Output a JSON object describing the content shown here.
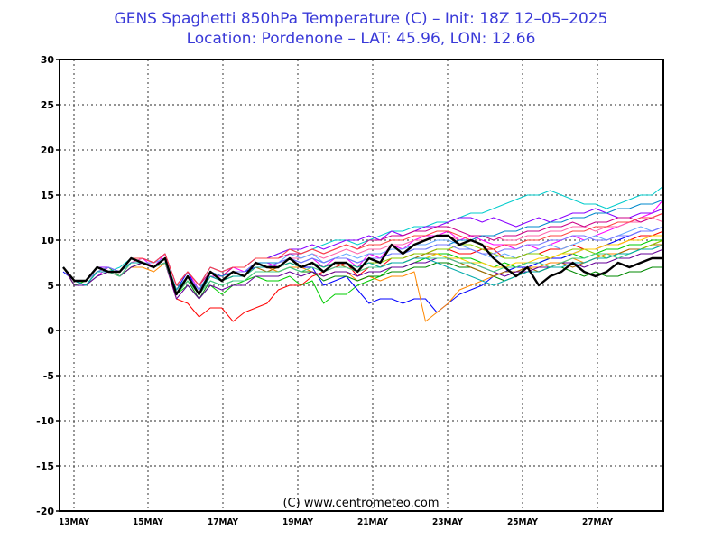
{
  "header": {
    "title_line1": "GENS Spaghetti 850hPa Temperature (C)  –  Init: 18Z 12–05–2025",
    "title_line2": "Location: Pordenone  –  LAT: 45.96, LON: 12.66"
  },
  "credit": "(C) www.centrometeo.com",
  "colors": {
    "title": "#3a3ad8",
    "grid": "#000000",
    "control": "#000000",
    "members": [
      "#ff00ff",
      "#00cc00",
      "#0000ff",
      "#ff0000",
      "#00cccc",
      "#ff8800",
      "#8800ff",
      "#008800",
      "#ff66aa",
      "#66aaff",
      "#aa6600",
      "#88cc00",
      "#cc0088",
      "#0088cc",
      "#ffcc00",
      "#660099",
      "#ff4444",
      "#44cc88",
      "#7777ff",
      "#00aaaa",
      "#cc6600",
      "#99cc33",
      "#ff33cc",
      "#3399ff",
      "#666666",
      "#00ff88",
      "#cc3333",
      "#6699cc",
      "#aa00aa",
      "#33aa33"
    ]
  },
  "chart_data": {
    "type": "line",
    "title": "GENS Spaghetti 850hPa Temperature (C)",
    "ylim": [
      -20,
      30
    ],
    "yticks": [
      30,
      25,
      20,
      15,
      10,
      5,
      0,
      -5,
      -10,
      -15,
      -20
    ],
    "xticks": [
      "13MAY",
      "15MAY",
      "17MAY",
      "19MAY",
      "21MAY",
      "23MAY",
      "25MAY",
      "27MAY"
    ],
    "grid": true,
    "control_run": [
      7,
      5.5,
      5.5,
      7,
      6.5,
      6.5,
      8,
      7.5,
      7,
      8,
      4,
      6,
      4,
      6.5,
      5.5,
      6.5,
      6,
      7.5,
      7,
      7,
      8,
      7,
      7.5,
      6.5,
      7.5,
      7.5,
      6.5,
      8,
      7.5,
      9.5,
      8.5,
      9.5,
      10,
      10.5,
      10.5,
      9.5,
      10,
      9.5,
      8,
      7,
      6,
      7,
      5,
      6,
      6.5,
      7.5,
      6.5,
      6,
      6.5,
      7.5,
      7,
      7.5,
      8,
      8
    ],
    "members": [
      [
        7,
        5.5,
        5,
        6,
        7,
        6,
        7.5,
        8,
        7,
        8.5,
        5,
        6.5,
        4.5,
        6,
        6,
        7,
        6.5,
        7.5,
        7.5,
        7,
        8,
        7.5,
        8,
        7,
        8,
        8,
        7,
        8.5,
        8,
        9.5,
        9,
        10,
        10.5,
        10.5,
        11,
        10,
        10.5,
        10,
        9.5,
        9.5,
        9,
        9.5,
        9,
        9.5,
        10,
        10.5,
        10,
        10.5,
        11,
        11.5,
        12,
        12.5,
        13,
        14.5
      ],
      [
        7,
        5,
        5.5,
        6.5,
        7,
        6,
        7,
        7.5,
        7,
        8,
        4,
        5,
        3.5,
        5,
        4,
        5,
        5.5,
        6,
        5.5,
        5.5,
        6,
        5,
        5.5,
        3,
        4,
        4,
        5,
        5.5,
        6,
        7,
        7,
        7.5,
        8,
        8.5,
        8.5,
        8,
        8,
        7.5,
        7,
        7.5,
        7,
        7.5,
        7.5,
        8,
        8,
        8.5,
        8,
        8.5,
        9,
        9,
        9.5,
        9.5,
        10,
        10
      ],
      [
        6.5,
        5.5,
        5,
        6.5,
        6.5,
        6.5,
        8,
        7.5,
        7,
        7.5,
        4.5,
        6.5,
        4,
        6,
        5.5,
        6.5,
        6.5,
        7,
        7,
        7,
        8,
        7,
        7,
        5,
        5.5,
        6,
        4.5,
        3,
        3.5,
        3.5,
        3,
        3.5,
        3.5,
        2,
        3,
        4,
        4.5,
        5,
        6,
        6.5,
        7,
        7,
        7.5,
        8,
        8,
        8.5,
        9,
        9,
        9.5,
        10,
        10.5,
        11,
        11,
        11.5
      ],
      [
        7,
        5,
        5,
        6.5,
        6.5,
        6.5,
        7.5,
        7.5,
        7,
        7.5,
        3.5,
        3,
        1.5,
        2.5,
        2.5,
        1,
        2,
        2.5,
        3,
        4.5,
        5,
        5,
        6,
        6.5,
        7,
        7.5,
        6,
        7,
        7,
        8,
        8,
        8.5,
        8.5,
        9,
        9,
        8.5,
        8.5,
        9,
        9,
        8,
        8,
        8.5,
        8.5,
        9,
        9,
        9.5,
        9,
        9,
        9.5,
        9.5,
        10,
        10.5,
        10.5,
        11
      ],
      [
        7,
        5.5,
        5.5,
        7,
        6.5,
        7,
        8,
        8,
        7.5,
        8.5,
        5,
        6.5,
        5,
        7,
        6.5,
        7,
        7,
        8,
        8,
        8.5,
        9,
        8.5,
        9,
        9.5,
        10,
        10,
        9.5,
        10,
        10.5,
        11,
        11,
        11.5,
        11.5,
        12,
        12,
        12.5,
        13,
        13,
        13.5,
        14,
        14.5,
        15,
        15,
        15.5,
        15,
        14.5,
        14,
        14,
        13.5,
        14,
        14.5,
        15,
        15,
        16
      ],
      [
        7,
        5.5,
        5.5,
        6.5,
        6.5,
        6,
        7,
        7,
        6.5,
        7.5,
        4.5,
        6,
        4,
        6,
        5.5,
        6,
        6,
        7,
        7,
        6.5,
        7,
        7,
        6.5,
        6,
        6.5,
        6.5,
        5.5,
        6,
        5.5,
        6,
        6,
        6.5,
        1,
        2,
        3,
        4.5,
        5,
        5.5,
        6,
        6.5,
        6.5,
        7,
        7,
        7.5,
        7.5,
        8,
        7.5,
        8,
        8.5,
        8.5,
        9,
        9,
        9.5,
        10
      ],
      [
        7,
        5.5,
        5.5,
        7,
        7,
        6.5,
        7.5,
        8,
        7.5,
        8.5,
        5,
        6.5,
        5,
        7,
        6.5,
        7,
        7,
        8,
        8,
        8.5,
        9,
        9,
        9.5,
        9,
        9.5,
        10,
        10,
        10.5,
        10,
        11,
        10.5,
        11,
        11.5,
        11.5,
        12,
        12.5,
        12.5,
        12,
        12.5,
        12,
        11.5,
        12,
        12.5,
        12,
        12.5,
        13,
        13,
        13.5,
        13,
        12.5,
        12.5,
        13,
        13,
        13.5
      ],
      [
        7,
        5,
        5,
        6,
        6.5,
        6,
        7,
        7.5,
        7,
        7.5,
        4,
        5.5,
        3.5,
        5.5,
        5,
        5.5,
        5.5,
        6.5,
        6.5,
        6.5,
        7,
        6.5,
        6.5,
        5.5,
        6,
        6,
        5.5,
        6,
        6,
        6.5,
        6.5,
        7,
        7,
        7.5,
        7.5,
        7,
        7,
        6.5,
        6,
        5.5,
        6,
        6.5,
        6.5,
        7,
        7,
        6.5,
        6,
        6.5,
        6,
        6,
        6.5,
        6.5,
        7,
        7
      ],
      [
        7,
        5.5,
        5.5,
        7,
        6.5,
        6.5,
        7.5,
        8,
        7.5,
        8,
        4.5,
        6,
        4.5,
        6.5,
        6,
        6.5,
        6.5,
        7.5,
        7,
        7.5,
        8,
        8,
        8.5,
        8,
        8.5,
        9,
        8.5,
        9,
        9,
        9.5,
        9.5,
        10,
        10,
        10.5,
        10.5,
        10,
        10,
        10.5,
        10.5,
        10,
        10,
        10.5,
        10.5,
        11,
        11,
        11.5,
        11.5,
        11,
        11.5,
        11.5,
        12,
        12,
        12.5,
        12
      ],
      [
        7,
        5.5,
        5,
        6.5,
        6.5,
        6.5,
        7.5,
        7.5,
        7.5,
        8,
        4.5,
        6,
        4.5,
        6,
        5.5,
        6.5,
        6.5,
        7.5,
        7,
        7.5,
        8.5,
        8,
        8.5,
        7.5,
        8,
        8.5,
        8,
        8.5,
        8.5,
        9,
        9,
        9.5,
        9.5,
        10,
        10,
        9.5,
        9,
        8.5,
        8,
        8.5,
        8,
        8.5,
        9,
        9.5,
        9,
        9.5,
        10,
        10.5,
        10,
        10.5,
        11,
        11.5,
        11,
        11.5
      ],
      [
        7,
        5.5,
        5.5,
        7,
        6.5,
        6.5,
        8,
        7.5,
        7,
        8,
        4.5,
        6,
        4,
        6,
        5.5,
        6,
        6,
        7,
        6.5,
        7,
        7.5,
        7,
        7.5,
        7,
        7.5,
        7,
        6.5,
        7,
        7,
        7.5,
        7.5,
        8,
        8.5,
        8.5,
        8,
        7.5,
        7,
        6.5,
        6,
        6.5,
        6.5,
        7,
        6.5,
        7,
        7.5,
        7,
        7.5,
        8,
        8,
        8.5,
        9,
        9,
        9.5,
        9.5
      ],
      [
        7,
        5,
        5,
        6.5,
        6.5,
        6,
        7.5,
        7.5,
        7,
        7.5,
        4,
        5.5,
        4,
        6,
        5.5,
        6,
        6,
        7,
        7,
        7,
        7.5,
        7,
        7.5,
        7,
        7.5,
        7.5,
        7,
        7.5,
        7.5,
        8,
        8,
        8.5,
        8.5,
        9,
        9,
        9.5,
        9.5,
        9,
        8.5,
        8,
        8,
        8.5,
        8.5,
        8,
        8.5,
        9,
        9,
        8.5,
        8,
        8.5,
        8.5,
        9,
        9.5,
        10
      ],
      [
        7,
        5.5,
        5.5,
        7,
        6.5,
        6.5,
        8,
        8,
        7.5,
        8.5,
        5,
        6.5,
        5,
        6.5,
        6,
        7,
        7,
        8,
        8,
        8,
        8.5,
        8.5,
        9,
        8.5,
        9,
        9.5,
        9,
        10,
        10,
        10.5,
        10.5,
        11,
        11,
        11.5,
        11.5,
        11,
        10.5,
        10.5,
        10,
        10.5,
        10.5,
        11,
        11,
        11.5,
        11.5,
        12,
        11.5,
        12,
        12,
        12.5,
        12.5,
        12,
        12.5,
        13
      ],
      [
        7,
        5.5,
        5,
        6.5,
        6.5,
        6.5,
        7.5,
        7.5,
        7,
        8,
        4.5,
        6,
        4.5,
        6.5,
        6,
        6.5,
        6.5,
        7.5,
        7.5,
        7.5,
        8,
        7.5,
        8,
        7.5,
        8,
        8,
        7.5,
        8,
        8,
        8.5,
        8.5,
        9,
        9,
        9.5,
        9.5,
        10,
        10,
        10.5,
        10.5,
        11,
        11,
        11.5,
        11.5,
        12,
        12,
        12.5,
        12.5,
        13,
        13,
        13.5,
        13.5,
        14,
        14,
        14.5
      ],
      [
        7,
        5.5,
        5.5,
        6.5,
        6.5,
        6.5,
        7.5,
        7.5,
        7,
        8,
        4.5,
        6,
        4,
        6,
        5.5,
        6.5,
        6,
        7,
        7,
        7,
        7.5,
        7,
        7.5,
        7,
        7.5,
        7.5,
        7,
        7.5,
        7,
        7.5,
        7.5,
        8,
        8,
        8.5,
        8,
        8,
        7.5,
        7.5,
        7,
        7,
        7.5,
        7.5,
        8,
        8,
        8.5,
        8.5,
        9,
        9,
        9.5,
        9.5,
        10,
        10,
        10.5,
        10.5
      ],
      [
        7,
        5,
        5,
        6,
        6.5,
        6,
        7,
        7.5,
        7,
        7.5,
        3.5,
        5,
        3.5,
        5,
        4.5,
        5,
        5,
        6,
        6,
        6,
        6.5,
        6,
        6.5,
        6,
        6.5,
        6.5,
        6,
        6.5,
        6.5,
        7,
        7,
        7.5,
        7.5,
        8,
        8,
        7.5,
        7.5,
        7,
        6.5,
        6,
        6.5,
        6.5,
        7,
        7,
        7.5,
        7.5,
        7,
        7.5,
        7.5,
        8,
        8,
        8.5,
        8.5,
        9
      ],
      [
        7,
        5.5,
        5.5,
        7,
        6.5,
        6.5,
        8,
        8,
        7.5,
        8.5,
        5,
        6.5,
        5,
        7,
        6.5,
        7,
        7,
        8,
        8,
        8,
        9,
        8.5,
        9,
        8.5,
        9,
        9.5,
        9,
        9.5,
        9.5,
        10,
        10,
        10.5,
        10.5,
        11,
        11,
        10.5,
        10,
        9.5,
        9,
        9.5,
        9.5,
        10,
        10,
        10.5,
        10.5,
        11,
        11,
        11.5,
        11.5,
        12,
        12,
        12.5,
        12.5,
        13
      ],
      [
        7,
        5.5,
        5,
        6.5,
        6.5,
        6,
        7.5,
        7.5,
        7,
        7.5,
        4,
        5.5,
        4,
        5.5,
        5,
        5.5,
        5.5,
        6.5,
        6.5,
        6.5,
        7,
        6.5,
        7,
        6.5,
        7,
        7,
        6.5,
        7,
        7,
        7.5,
        7.5,
        8,
        8,
        8,
        8,
        7.5,
        7.5,
        7,
        6.5,
        7,
        7,
        7.5,
        7.5,
        7,
        7.5,
        8,
        8,
        8.5,
        8.5,
        8,
        8.5,
        9,
        9,
        9.5
      ],
      [
        7,
        5.5,
        5.5,
        6.5,
        7,
        6.5,
        7.5,
        7.5,
        7,
        8,
        4.5,
        6,
        4.5,
        6,
        5.5,
        6.5,
        6.5,
        7.5,
        7,
        7.5,
        8,
        7.5,
        8,
        7.5,
        8,
        8,
        7.5,
        8,
        8,
        8.5,
        8.5,
        9,
        9,
        9.5,
        9.5,
        9,
        9,
        8.5,
        8.5,
        9,
        9,
        9.5,
        9.5,
        10,
        10,
        10.5,
        10.5,
        10,
        10,
        10.5,
        10.5,
        11,
        11,
        11.5
      ],
      [
        7,
        5.5,
        5,
        6.5,
        6.5,
        6.5,
        7.5,
        7.5,
        7,
        8,
        4.5,
        6,
        4,
        6,
        5.5,
        6,
        6,
        7,
        7,
        7,
        7.5,
        7,
        7.5,
        7,
        7.5,
        7.5,
        7,
        7.5,
        7,
        7.5,
        7.5,
        8,
        8,
        7.5,
        7,
        6.5,
        6,
        5.5,
        5,
        5.5,
        6,
        6.5,
        6.5,
        7,
        7,
        7.5,
        7.5,
        8,
        8,
        8.5,
        8.5,
        9,
        9,
        9.5
      ]
    ]
  }
}
